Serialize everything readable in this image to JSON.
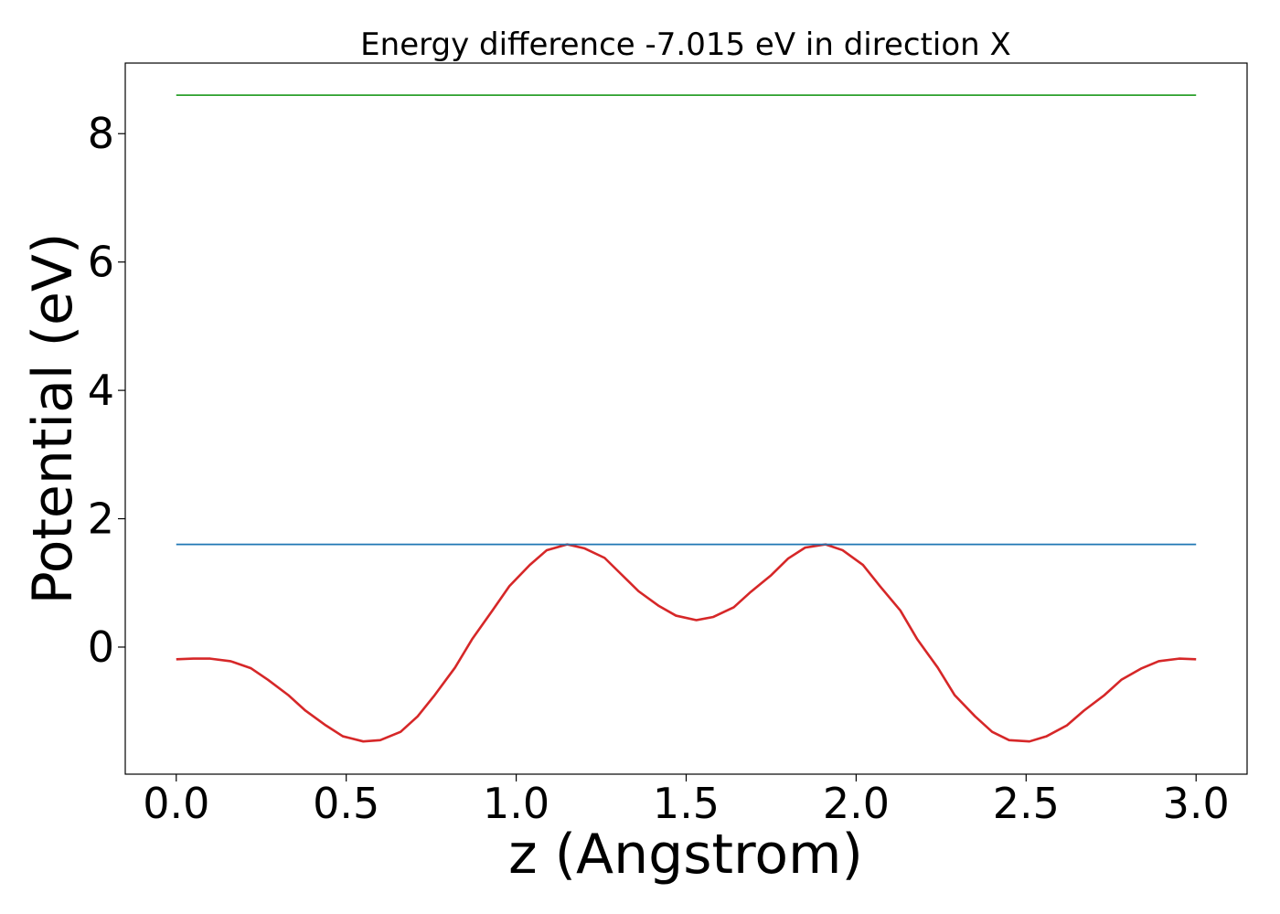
{
  "chart_data": {
    "type": "line",
    "title": "Energy difference -7.015 eV in direction X",
    "xlabel": "z (Angstrom)",
    "ylabel": "Potential (eV)",
    "xlim": [
      -0.15,
      3.15
    ],
    "ylim": [
      -1.98,
      9.1
    ],
    "grid": false,
    "x_ticks": [
      0.0,
      0.5,
      1.0,
      1.5,
      2.0,
      2.5,
      3.0
    ],
    "x_tick_labels": [
      "0.0",
      "0.5",
      "1.0",
      "1.5",
      "2.0",
      "2.5",
      "3.0"
    ],
    "y_ticks": [
      0,
      2,
      4,
      6,
      8
    ],
    "y_tick_labels": [
      "0",
      "2",
      "4",
      "6",
      "8"
    ],
    "series": [
      {
        "color": "#d62728",
        "x": [
          0.0,
          0.05,
          0.1,
          0.16,
          0.22,
          0.27,
          0.33,
          0.38,
          0.44,
          0.49,
          0.55,
          0.6,
          0.66,
          0.71,
          0.76,
          0.82,
          0.87,
          0.93,
          0.98,
          1.04,
          1.09,
          1.15,
          1.2,
          1.26,
          1.31,
          1.36,
          1.42,
          1.47,
          1.53,
          1.58,
          1.64,
          1.69,
          1.75,
          1.8,
          1.85,
          1.91,
          1.96,
          2.02,
          2.07,
          2.13,
          2.18,
          2.24,
          2.29,
          2.35,
          2.4,
          2.45,
          2.51,
          2.56,
          2.62,
          2.67,
          2.73,
          2.78,
          2.84,
          2.89,
          2.95,
          3.0
        ],
        "y": [
          -0.19,
          -0.18,
          -0.18,
          -0.22,
          -0.33,
          -0.51,
          -0.75,
          -0.99,
          -1.22,
          -1.39,
          -1.47,
          -1.45,
          -1.32,
          -1.08,
          -0.75,
          -0.32,
          0.12,
          0.57,
          0.95,
          1.28,
          1.51,
          1.6,
          1.54,
          1.39,
          1.13,
          0.87,
          0.64,
          0.49,
          0.42,
          0.47,
          0.62,
          0.86,
          1.12,
          1.38,
          1.55,
          1.6,
          1.51,
          1.28,
          0.95,
          0.57,
          0.12,
          -0.32,
          -0.75,
          -1.08,
          -1.32,
          -1.45,
          -1.47,
          -1.39,
          -1.22,
          -0.99,
          -0.75,
          -0.51,
          -0.33,
          -0.22,
          -0.18,
          -0.19
        ]
      },
      {
        "color": "#1f77b4",
        "x": [
          0.0,
          3.0
        ],
        "y": [
          1.6,
          1.6
        ]
      },
      {
        "color": "#2ca02c",
        "x": [
          0.0,
          3.0
        ],
        "y": [
          8.6,
          8.6
        ]
      }
    ]
  }
}
